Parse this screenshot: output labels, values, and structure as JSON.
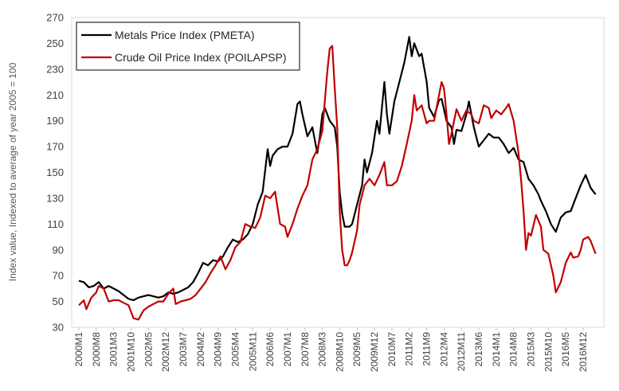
{
  "chart_data": {
    "type": "line",
    "title": "",
    "xlabel": "",
    "ylabel": "Index value, Indexed to average of year 2005 = 100",
    "ylim": [
      30,
      270
    ],
    "yticks": [
      30,
      50,
      70,
      90,
      110,
      130,
      150,
      170,
      190,
      210,
      230,
      250,
      270
    ],
    "x_start": "2000M1",
    "x_end": "2016M12",
    "xtick_labels": [
      "2000M1",
      "2000M8",
      "2001M3",
      "2001M10",
      "2002M5",
      "2002M12",
      "2003M7",
      "2004M2",
      "2004M9",
      "2005M4",
      "2005M11",
      "2006M6",
      "2007M1",
      "2007M8",
      "2008M3",
      "2008M10",
      "2009M5",
      "2009M12",
      "2010M7",
      "2011M2",
      "2011M9",
      "2012M4",
      "2012M11",
      "2013M6",
      "2014M1",
      "2014M8",
      "2015M3",
      "2015M10",
      "2016M5",
      "2016M12"
    ],
    "grid": false,
    "legend_position": "top-left",
    "series": [
      {
        "name": "Metals Price Index (PMETA)",
        "color": "#000000",
        "points": [
          [
            "2000M1",
            66
          ],
          [
            "2000M3",
            65
          ],
          [
            "2000M5",
            61
          ],
          [
            "2000M7",
            62
          ],
          [
            "2000M9",
            65
          ],
          [
            "2000M11",
            60
          ],
          [
            "2001M1",
            62
          ],
          [
            "2001M3",
            60
          ],
          [
            "2001M5",
            58
          ],
          [
            "2001M7",
            55
          ],
          [
            "2001M9",
            52
          ],
          [
            "2001M11",
            51
          ],
          [
            "2002M1",
            53
          ],
          [
            "2002M3",
            54
          ],
          [
            "2002M5",
            55
          ],
          [
            "2002M7",
            54
          ],
          [
            "2002M9",
            53
          ],
          [
            "2002M11",
            54
          ],
          [
            "2003M1",
            57
          ],
          [
            "2003M3",
            56
          ],
          [
            "2003M5",
            57
          ],
          [
            "2003M7",
            59
          ],
          [
            "2003M9",
            61
          ],
          [
            "2003M11",
            65
          ],
          [
            "2004M1",
            72
          ],
          [
            "2004M3",
            80
          ],
          [
            "2004M5",
            78
          ],
          [
            "2004M7",
            82
          ],
          [
            "2004M9",
            81
          ],
          [
            "2004M11",
            85
          ],
          [
            "2005M1",
            92
          ],
          [
            "2005M3",
            98
          ],
          [
            "2005M5",
            96
          ],
          [
            "2005M7",
            98
          ],
          [
            "2005M9",
            102
          ],
          [
            "2005M11",
            110
          ],
          [
            "2006M1",
            125
          ],
          [
            "2006M3",
            135
          ],
          [
            "2006M5",
            168
          ],
          [
            "2006M6",
            155
          ],
          [
            "2006M7",
            163
          ],
          [
            "2006M9",
            168
          ],
          [
            "2006M11",
            170
          ],
          [
            "2007M1",
            170
          ],
          [
            "2007M3",
            180
          ],
          [
            "2007M5",
            203
          ],
          [
            "2007M6",
            205
          ],
          [
            "2007M7",
            195
          ],
          [
            "2007M9",
            178
          ],
          [
            "2007M11",
            185
          ],
          [
            "2008M1",
            165
          ],
          [
            "2008M2",
            178
          ],
          [
            "2008M3",
            195
          ],
          [
            "2008M4",
            200
          ],
          [
            "2008M6",
            190
          ],
          [
            "2008M8",
            185
          ],
          [
            "2008M9",
            170
          ],
          [
            "2008M10",
            135
          ],
          [
            "2008M11",
            118
          ],
          [
            "2008M12",
            108
          ],
          [
            "2009M2",
            108
          ],
          [
            "2009M3",
            110
          ],
          [
            "2009M5",
            125
          ],
          [
            "2009M7",
            140
          ],
          [
            "2009M8",
            160
          ],
          [
            "2009M9",
            150
          ],
          [
            "2009M11",
            165
          ],
          [
            "2010M1",
            190
          ],
          [
            "2010M2",
            180
          ],
          [
            "2010M4",
            220
          ],
          [
            "2010M5",
            195
          ],
          [
            "2010M6",
            180
          ],
          [
            "2010M8",
            205
          ],
          [
            "2010M10",
            220
          ],
          [
            "2010M12",
            235
          ],
          [
            "2011M2",
            255
          ],
          [
            "2011M3",
            240
          ],
          [
            "2011M4",
            250
          ],
          [
            "2011M6",
            240
          ],
          [
            "2011M7",
            242
          ],
          [
            "2011M9",
            220
          ],
          [
            "2011M10",
            200
          ],
          [
            "2011M12",
            193
          ],
          [
            "2012M2",
            206
          ],
          [
            "2012M3",
            207
          ],
          [
            "2012M5",
            190
          ],
          [
            "2012M7",
            185
          ],
          [
            "2012M8",
            172
          ],
          [
            "2012M9",
            183
          ],
          [
            "2012M11",
            182
          ],
          [
            "2013M1",
            195
          ],
          [
            "2013M2",
            205
          ],
          [
            "2013M4",
            185
          ],
          [
            "2013M6",
            170
          ],
          [
            "2013M8",
            175
          ],
          [
            "2013M10",
            180
          ],
          [
            "2013M12",
            177
          ],
          [
            "2014M2",
            177
          ],
          [
            "2014M4",
            172
          ],
          [
            "2014M6",
            165
          ],
          [
            "2014M8",
            169
          ],
          [
            "2014M10",
            160
          ],
          [
            "2014M12",
            158
          ],
          [
            "2015M2",
            145
          ],
          [
            "2015M4",
            140
          ],
          [
            "2015M6",
            133
          ],
          [
            "2015M7",
            128
          ],
          [
            "2015M9",
            120
          ],
          [
            "2015M11",
            110
          ],
          [
            "2016M1",
            104
          ],
          [
            "2016M3",
            115
          ],
          [
            "2016M5",
            119
          ],
          [
            "2016M7",
            120
          ],
          [
            "2016M9",
            130
          ],
          [
            "2016M11",
            140
          ],
          [
            "2017M1",
            148
          ],
          [
            "2017M3",
            138
          ],
          [
            "2017M5",
            133
          ]
        ]
      },
      {
        "name": "Crude Oil Price Index (POILAPSP)",
        "color": "#c00000",
        "points": [
          [
            "2000M1",
            47
          ],
          [
            "2000M3",
            51
          ],
          [
            "2000M4",
            44
          ],
          [
            "2000M6",
            53
          ],
          [
            "2000M8",
            57
          ],
          [
            "2000M9",
            62
          ],
          [
            "2000M11",
            60
          ],
          [
            "2001M1",
            50
          ],
          [
            "2001M3",
            51
          ],
          [
            "2001M5",
            51
          ],
          [
            "2001M7",
            49
          ],
          [
            "2001M9",
            47
          ],
          [
            "2001M11",
            37
          ],
          [
            "2002M1",
            36
          ],
          [
            "2002M3",
            43
          ],
          [
            "2002M5",
            46
          ],
          [
            "2002M7",
            48
          ],
          [
            "2002M9",
            50
          ],
          [
            "2002M11",
            50
          ],
          [
            "2003M1",
            56
          ],
          [
            "2003M3",
            60
          ],
          [
            "2003M4",
            48
          ],
          [
            "2003M6",
            50
          ],
          [
            "2003M8",
            51
          ],
          [
            "2003M10",
            52
          ],
          [
            "2003M12",
            55
          ],
          [
            "2004M2",
            60
          ],
          [
            "2004M4",
            65
          ],
          [
            "2004M6",
            72
          ],
          [
            "2004M8",
            78
          ],
          [
            "2004M10",
            85
          ],
          [
            "2004M12",
            75
          ],
          [
            "2005M2",
            82
          ],
          [
            "2005M4",
            92
          ],
          [
            "2005M6",
            96
          ],
          [
            "2005M8",
            110
          ],
          [
            "2005M10",
            108
          ],
          [
            "2005M12",
            107
          ],
          [
            "2006M2",
            115
          ],
          [
            "2006M4",
            132
          ],
          [
            "2006M6",
            130
          ],
          [
            "2006M8",
            135
          ],
          [
            "2006M10",
            110
          ],
          [
            "2006M12",
            108
          ],
          [
            "2007M1",
            100
          ],
          [
            "2007M3",
            110
          ],
          [
            "2007M5",
            122
          ],
          [
            "2007M7",
            132
          ],
          [
            "2007M9",
            140
          ],
          [
            "2007M11",
            160
          ],
          [
            "2008M1",
            168
          ],
          [
            "2008M3",
            182
          ],
          [
            "2008M5",
            228
          ],
          [
            "2008M6",
            246
          ],
          [
            "2008M7",
            248
          ],
          [
            "2008M8",
            215
          ],
          [
            "2008M9",
            185
          ],
          [
            "2008M10",
            120
          ],
          [
            "2008M11",
            90
          ],
          [
            "2008M12",
            78
          ],
          [
            "2009M1",
            78
          ],
          [
            "2009M2",
            82
          ],
          [
            "2009M3",
            88
          ],
          [
            "2009M5",
            105
          ],
          [
            "2009M6",
            125
          ],
          [
            "2009M8",
            140
          ],
          [
            "2009M10",
            145
          ],
          [
            "2009M12",
            140
          ],
          [
            "2010M2",
            148
          ],
          [
            "2010M4",
            158
          ],
          [
            "2010M5",
            140
          ],
          [
            "2010M7",
            140
          ],
          [
            "2010M9",
            143
          ],
          [
            "2010M11",
            155
          ],
          [
            "2011M1",
            172
          ],
          [
            "2011M3",
            190
          ],
          [
            "2011M4",
            210
          ],
          [
            "2011M5",
            198
          ],
          [
            "2011M7",
            202
          ],
          [
            "2011M9",
            188
          ],
          [
            "2011M10",
            190
          ],
          [
            "2011M12",
            190
          ],
          [
            "2012M2",
            210
          ],
          [
            "2012M3",
            220
          ],
          [
            "2012M4",
            215
          ],
          [
            "2012M5",
            195
          ],
          [
            "2012M6",
            172
          ],
          [
            "2012M7",
            180
          ],
          [
            "2012M9",
            199
          ],
          [
            "2012M11",
            190
          ],
          [
            "2013M1",
            198
          ],
          [
            "2013M3",
            195
          ],
          [
            "2013M4",
            190
          ],
          [
            "2013M6",
            188
          ],
          [
            "2013M8",
            202
          ],
          [
            "2013M10",
            200
          ],
          [
            "2013M11",
            192
          ],
          [
            "2014M1",
            198
          ],
          [
            "2014M3",
            195
          ],
          [
            "2014M5",
            200
          ],
          [
            "2014M6",
            203
          ],
          [
            "2014M8",
            190
          ],
          [
            "2014M10",
            165
          ],
          [
            "2014M11",
            145
          ],
          [
            "2014M12",
            120
          ],
          [
            "2015M1",
            90
          ],
          [
            "2015M2",
            103
          ],
          [
            "2015M3",
            101
          ],
          [
            "2015M5",
            117
          ],
          [
            "2015M7",
            108
          ],
          [
            "2015M8",
            90
          ],
          [
            "2015M10",
            87
          ],
          [
            "2015M12",
            70
          ],
          [
            "2016M1",
            57
          ],
          [
            "2016M3",
            65
          ],
          [
            "2016M5",
            80
          ],
          [
            "2016M7",
            88
          ],
          [
            "2016M8",
            84
          ],
          [
            "2016M10",
            85
          ],
          [
            "2016M11",
            90
          ],
          [
            "2016M12",
            98
          ],
          [
            "2017M2",
            100
          ],
          [
            "2017M3",
            97
          ],
          [
            "2017M4",
            92
          ],
          [
            "2017M5",
            87
          ]
        ]
      }
    ]
  }
}
